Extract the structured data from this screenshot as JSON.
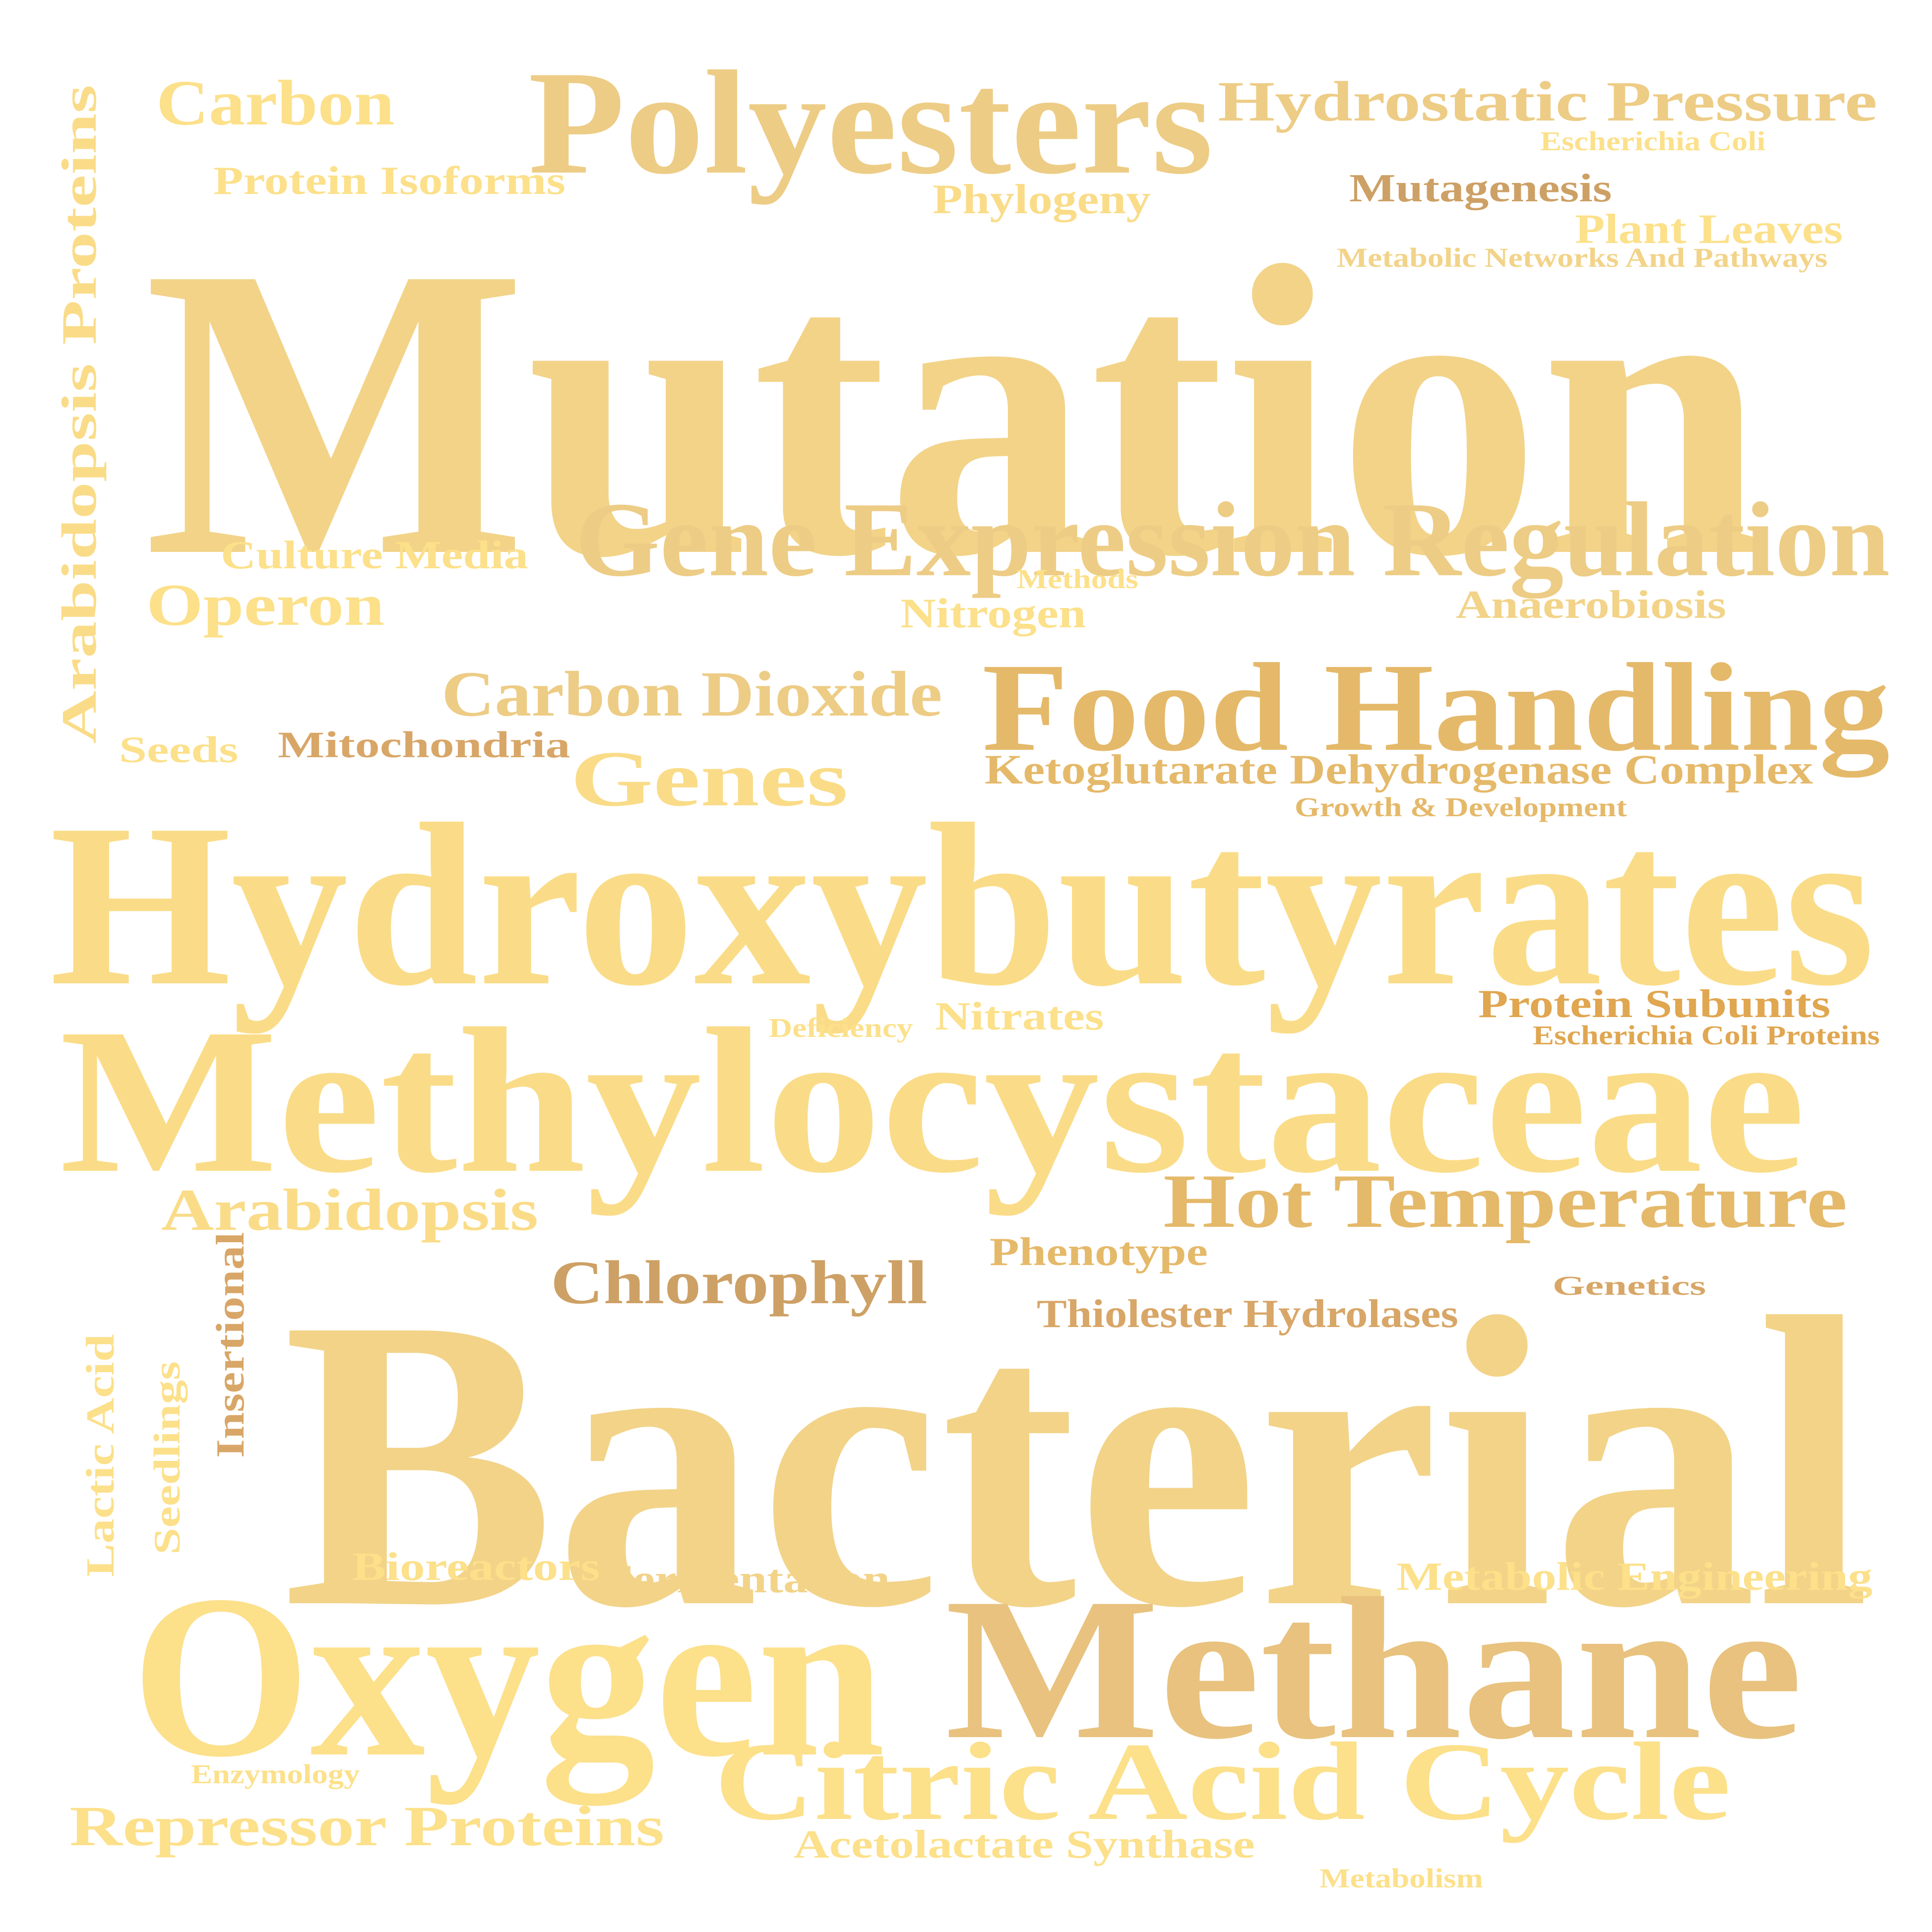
{
  "palette": {
    "light": "#FCE08A",
    "pale": "#FADC88",
    "sand": "#F2D388",
    "wheat": "#EDCC85",
    "tan": "#E8C27E",
    "amber": "#E5B96A",
    "ochre": "#D8A667",
    "brown": "#CDA065",
    "bronze": "#E0A650"
  },
  "words": [
    {
      "id": "mutation",
      "text": "Mutation",
      "color": "sand"
    },
    {
      "id": "bacterial",
      "text": "Bacterial",
      "color": "sand"
    },
    {
      "id": "hydroxybutyrates",
      "text": "Hydroxybutyrates",
      "color": "pale"
    },
    {
      "id": "methylocystaceae",
      "text": "Methylocystaceae",
      "color": "pale"
    },
    {
      "id": "oxygen",
      "text": "Oxygen",
      "color": "light"
    },
    {
      "id": "methane",
      "text": "Methane",
      "color": "tan"
    },
    {
      "id": "polyesters",
      "text": "Polyesters",
      "color": "wheat"
    },
    {
      "id": "gene-expression-regulation",
      "text": "Gene Expression Regulation",
      "color": "wheat"
    },
    {
      "id": "food-handling",
      "text": "Food Handling",
      "color": "amber"
    },
    {
      "id": "citric-acid-cycle",
      "text": "Citric Acid Cycle",
      "color": "light"
    },
    {
      "id": "hydrostatic-pressure",
      "text": "Hydrostatic Pressure",
      "color": "wheat"
    },
    {
      "id": "hot-temperature",
      "text": "Hot Temperature",
      "color": "amber"
    },
    {
      "id": "genes",
      "text": "Genes",
      "color": "pale"
    },
    {
      "id": "carbon-dioxide",
      "text": "Carbon Dioxide",
      "color": "wheat"
    },
    {
      "id": "chlorophyll",
      "text": "Chlorophyll",
      "color": "brown"
    },
    {
      "id": "carbon",
      "text": "Carbon",
      "color": "light"
    },
    {
      "id": "operon",
      "text": "Operon",
      "color": "light"
    },
    {
      "id": "arabidopsis",
      "text": "Arabidopsis",
      "color": "pale"
    },
    {
      "id": "repressor-proteins",
      "text": "Repressor Proteins",
      "color": "light"
    },
    {
      "id": "arabidopsis-proteins",
      "text": "Arabidopsis Proteins",
      "color": "pale"
    },
    {
      "id": "protein-isoforms",
      "text": "Protein Isoforms",
      "color": "light"
    },
    {
      "id": "culture-media",
      "text": "Culture Media",
      "color": "light"
    },
    {
      "id": "seeds",
      "text": "Seeds",
      "color": "light"
    },
    {
      "id": "mitochondria",
      "text": "Mitochondria",
      "color": "ochre"
    },
    {
      "id": "phylogeny",
      "text": "Phylogeny",
      "color": "pale"
    },
    {
      "id": "mutagenesis",
      "text": "Mutagenesis",
      "color": "brown"
    },
    {
      "id": "plant-leaves",
      "text": "Plant Leaves",
      "color": "light"
    },
    {
      "id": "escherichia-coli",
      "text": "Escherichia Coli",
      "color": "light"
    },
    {
      "id": "metabolic-networks-and-pathways",
      "text": "Metabolic Networks And Pathways",
      "color": "sand"
    },
    {
      "id": "methods",
      "text": "Methods",
      "color": "light"
    },
    {
      "id": "nitrogen",
      "text": "Nitrogen",
      "color": "light"
    },
    {
      "id": "anaerobiosis",
      "text": "Anaerobiosis",
      "color": "sand"
    },
    {
      "id": "ketoglutarate-dehydrogenase-complex",
      "text": "Ketoglutarate Dehydrogenase Complex",
      "color": "amber"
    },
    {
      "id": "growth-development",
      "text": "Growth & Development",
      "color": "amber"
    },
    {
      "id": "protein-subunits",
      "text": "Protein Subunits",
      "color": "bronze"
    },
    {
      "id": "escherichia-coli-proteins",
      "text": "Escherichia Coli Proteins",
      "color": "bronze"
    },
    {
      "id": "deficiency",
      "text": "Deficiency",
      "color": "light"
    },
    {
      "id": "nitrates",
      "text": "Nitrates",
      "color": "light"
    },
    {
      "id": "phenotype",
      "text": "Phenotype",
      "color": "amber"
    },
    {
      "id": "thiolester-hydrolases",
      "text": "Thiolester Hydrolases",
      "color": "ochre"
    },
    {
      "id": "genetics",
      "text": "Genetics",
      "color": "ochre"
    },
    {
      "id": "insertional",
      "text": "Insertional",
      "color": "ochre"
    },
    {
      "id": "seedlings",
      "text": "Seedlings",
      "color": "light"
    },
    {
      "id": "lactic-acid",
      "text": "Lactic Acid",
      "color": "light"
    },
    {
      "id": "bioreactors",
      "text": "Bioreactors",
      "color": "light"
    },
    {
      "id": "fermentation",
      "text": "Fermentation",
      "color": "sand"
    },
    {
      "id": "metabolic-engineering",
      "text": "Metabolic Engineering",
      "color": "light"
    },
    {
      "id": "enzymology",
      "text": "Enzymology",
      "color": "light"
    },
    {
      "id": "acetolactate-synthase",
      "text": "Acetolactate Synthase",
      "color": "light"
    },
    {
      "id": "metabolism",
      "text": "Metabolism",
      "color": "light"
    }
  ]
}
